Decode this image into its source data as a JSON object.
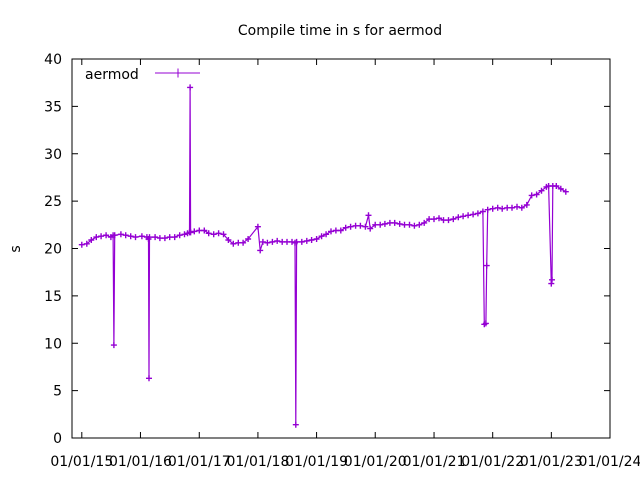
{
  "chart_data": {
    "type": "line",
    "title": "Compile time in s for aermod",
    "xlabel": "",
    "ylabel": "s",
    "ylim": [
      0,
      40
    ],
    "yticks": [
      0,
      5,
      10,
      15,
      20,
      25,
      30,
      35,
      40
    ],
    "xlim": [
      "2014-11-01",
      "2024-01-01"
    ],
    "xticks": [
      "2015-01-01",
      "2016-01-01",
      "2017-01-01",
      "2018-01-01",
      "2019-01-01",
      "2020-01-01",
      "2021-01-01",
      "2022-01-01",
      "2023-01-01",
      "2024-01-01"
    ],
    "xtick_labels": [
      "01/01/15",
      "01/01/16",
      "01/01/17",
      "01/01/18",
      "01/01/19",
      "01/01/20",
      "01/01/21",
      "01/01/22",
      "01/01/23",
      "01/01/24"
    ],
    "grid": false,
    "legend_position": "top-left",
    "series": [
      {
        "name": "aermod",
        "color": "#9400d3",
        "marker": "plus",
        "points": [
          [
            "2015-01-01",
            20.4
          ],
          [
            "2015-02-01",
            20.5
          ],
          [
            "2015-03-01",
            20.9
          ],
          [
            "2015-04-01",
            21.2
          ],
          [
            "2015-05-01",
            21.3
          ],
          [
            "2015-06-01",
            21.4
          ],
          [
            "2015-07-01",
            21.2
          ],
          [
            "2015-07-15",
            21.4
          ],
          [
            "2015-07-20",
            9.8
          ],
          [
            "2015-07-25",
            21.4
          ],
          [
            "2015-09-01",
            21.5
          ],
          [
            "2015-10-01",
            21.4
          ],
          [
            "2015-11-01",
            21.3
          ],
          [
            "2015-12-01",
            21.2
          ],
          [
            "2016-01-10",
            21.3
          ],
          [
            "2016-02-10",
            21.2
          ],
          [
            "2016-02-20",
            21.0
          ],
          [
            "2016-02-23",
            6.3
          ],
          [
            "2016-02-26",
            21.2
          ],
          [
            "2016-04-01",
            21.2
          ],
          [
            "2016-05-01",
            21.1
          ],
          [
            "2016-06-01",
            21.1
          ],
          [
            "2016-07-01",
            21.2
          ],
          [
            "2016-08-01",
            21.2
          ],
          [
            "2016-09-01",
            21.4
          ],
          [
            "2016-10-01",
            21.5
          ],
          [
            "2016-10-20",
            21.6
          ],
          [
            "2016-11-01",
            21.7
          ],
          [
            "2016-11-05",
            37.0
          ],
          [
            "2016-11-08",
            21.7
          ],
          [
            "2016-12-01",
            21.8
          ],
          [
            "2017-01-01",
            21.9
          ],
          [
            "2017-02-01",
            21.9
          ],
          [
            "2017-03-01",
            21.6
          ],
          [
            "2017-04-01",
            21.5
          ],
          [
            "2017-05-01",
            21.6
          ],
          [
            "2017-06-01",
            21.5
          ],
          [
            "2017-07-01",
            20.9
          ],
          [
            "2017-08-01",
            20.5
          ],
          [
            "2017-09-01",
            20.6
          ],
          [
            "2017-10-01",
            20.6
          ],
          [
            "2017-11-01",
            21.0
          ],
          [
            "2018-01-01",
            22.3
          ],
          [
            "2018-01-15",
            19.8
          ],
          [
            "2018-02-01",
            20.7
          ],
          [
            "2018-03-01",
            20.6
          ],
          [
            "2018-04-01",
            20.7
          ],
          [
            "2018-05-01",
            20.8
          ],
          [
            "2018-06-01",
            20.7
          ],
          [
            "2018-07-01",
            20.7
          ],
          [
            "2018-08-01",
            20.7
          ],
          [
            "2018-08-20",
            20.6
          ],
          [
            "2018-08-25",
            1.4
          ],
          [
            "2018-08-30",
            20.7
          ],
          [
            "2018-10-01",
            20.7
          ],
          [
            "2018-11-01",
            20.8
          ],
          [
            "2018-12-01",
            20.9
          ],
          [
            "2019-01-01",
            21.0
          ],
          [
            "2019-02-01",
            21.3
          ],
          [
            "2019-03-01",
            21.5
          ],
          [
            "2019-04-01",
            21.8
          ],
          [
            "2019-05-01",
            21.9
          ],
          [
            "2019-06-01",
            21.9
          ],
          [
            "2019-07-01",
            22.2
          ],
          [
            "2019-08-01",
            22.3
          ],
          [
            "2019-09-01",
            22.4
          ],
          [
            "2019-10-01",
            22.4
          ],
          [
            "2019-11-01",
            22.3
          ],
          [
            "2019-11-20",
            23.5
          ],
          [
            "2019-12-01",
            22.1
          ],
          [
            "2020-01-01",
            22.5
          ],
          [
            "2020-02-01",
            22.5
          ],
          [
            "2020-03-01",
            22.6
          ],
          [
            "2020-04-01",
            22.7
          ],
          [
            "2020-05-01",
            22.7
          ],
          [
            "2020-06-01",
            22.6
          ],
          [
            "2020-07-01",
            22.5
          ],
          [
            "2020-08-01",
            22.5
          ],
          [
            "2020-09-01",
            22.4
          ],
          [
            "2020-10-01",
            22.5
          ],
          [
            "2020-11-01",
            22.7
          ],
          [
            "2020-12-01",
            23.1
          ],
          [
            "2021-01-01",
            23.1
          ],
          [
            "2021-02-01",
            23.2
          ],
          [
            "2021-03-01",
            23.0
          ],
          [
            "2021-04-01",
            23.0
          ],
          [
            "2021-05-01",
            23.1
          ],
          [
            "2021-06-01",
            23.3
          ],
          [
            "2021-07-01",
            23.4
          ],
          [
            "2021-08-01",
            23.5
          ],
          [
            "2021-09-01",
            23.6
          ],
          [
            "2021-10-01",
            23.7
          ],
          [
            "2021-11-01",
            23.9
          ],
          [
            "2021-11-10",
            12.0
          ],
          [
            "2021-11-20",
            12.1
          ],
          [
            "2021-11-25",
            18.2
          ],
          [
            "2021-12-01",
            24.1
          ],
          [
            "2022-01-01",
            24.2
          ],
          [
            "2022-02-01",
            24.3
          ],
          [
            "2022-03-01",
            24.2
          ],
          [
            "2022-04-01",
            24.3
          ],
          [
            "2022-05-01",
            24.3
          ],
          [
            "2022-06-01",
            24.4
          ],
          [
            "2022-07-01",
            24.3
          ],
          [
            "2022-08-01",
            24.6
          ],
          [
            "2022-09-01",
            25.6
          ],
          [
            "2022-10-01",
            25.7
          ],
          [
            "2022-11-01",
            26.1
          ],
          [
            "2022-12-01",
            26.5
          ],
          [
            "2022-12-15",
            26.6
          ],
          [
            "2023-01-01",
            16.3
          ],
          [
            "2023-01-05",
            16.7
          ],
          [
            "2023-01-10",
            26.6
          ],
          [
            "2023-02-01",
            26.6
          ],
          [
            "2023-03-01",
            26.3
          ],
          [
            "2023-04-01",
            26.0
          ]
        ]
      }
    ]
  }
}
